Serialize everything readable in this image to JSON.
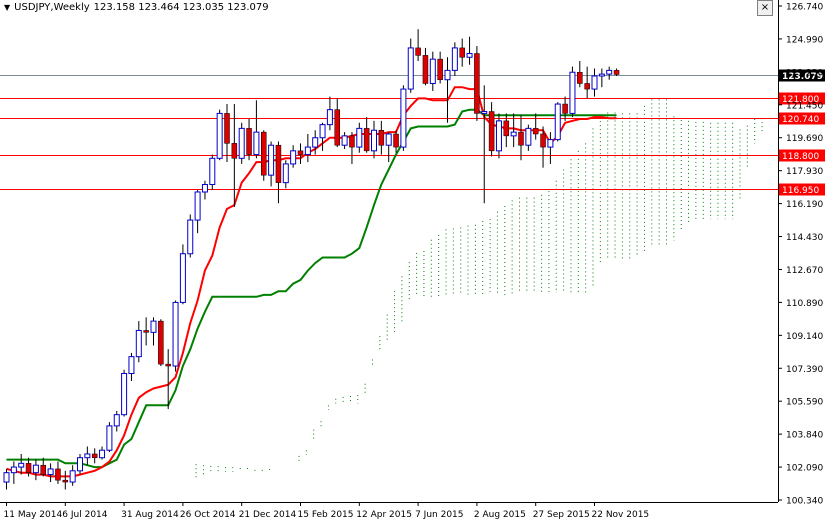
{
  "header": {
    "symbol": "USDJPY,Weekly",
    "ohlc": "123.158 123.464 123.035 123.079",
    "close_label": "×"
  },
  "chart_data": {
    "type": "candlestick",
    "instrument": "USDJPY",
    "timeframe": "Weekly",
    "ylim": [
      100.34,
      126.74
    ],
    "price_axis_ticks": [
      "126.740",
      "124.990",
      "123.230",
      "121.450",
      "119.690",
      "117.930",
      "116.190",
      "114.430",
      "112.670",
      "110.890",
      "109.140",
      "107.390",
      "105.590",
      "103.840",
      "102.090",
      "100.340"
    ],
    "date_axis_ticks": [
      "11 May 2014",
      "6 Jul 2014",
      "31 Aug 2014",
      "26 Oct 2014",
      "21 Dec 2014",
      "15 Feb 2015",
      "12 Apr 2015",
      "7 Jun 2015",
      "2 Aug 2015",
      "27 Sep 2015",
      "22 Nov 2015"
    ],
    "date_tick_index": [
      0,
      8,
      16,
      24,
      32,
      40,
      48,
      56,
      64,
      72,
      80
    ],
    "current_price": {
      "value": 123.079,
      "label": "123.079"
    },
    "horizontal_levels": [
      {
        "value": 121.8,
        "label": "121.800"
      },
      {
        "value": 120.74,
        "label": "120.740"
      },
      {
        "value": 118.8,
        "label": "118.800"
      },
      {
        "value": 116.95,
        "label": "116.950"
      }
    ],
    "candles": [
      [
        101.3,
        102.0,
        100.9,
        101.8
      ],
      [
        101.8,
        102.4,
        101.2,
        102.1
      ],
      [
        102.1,
        102.8,
        101.7,
        102.3
      ],
      [
        102.3,
        102.6,
        101.6,
        101.8
      ],
      [
        101.8,
        102.5,
        101.4,
        102.2
      ],
      [
        102.2,
        102.6,
        101.6,
        101.7
      ],
      [
        101.7,
        102.3,
        101.3,
        102.0
      ],
      [
        102.0,
        102.4,
        101.2,
        101.4
      ],
      [
        101.4,
        101.9,
        100.9,
        101.3
      ],
      [
        101.3,
        102.2,
        101.1,
        101.9
      ],
      [
        101.9,
        102.8,
        101.7,
        102.6
      ],
      [
        102.6,
        103.2,
        102.2,
        102.8
      ],
      [
        102.8,
        103.1,
        102.3,
        102.6
      ],
      [
        102.6,
        103.2,
        102.5,
        103.0
      ],
      [
        103.0,
        104.5,
        102.9,
        104.3
      ],
      [
        104.3,
        105.1,
        104.0,
        104.9
      ],
      [
        104.9,
        107.3,
        104.8,
        107.1
      ],
      [
        107.1,
        108.2,
        106.7,
        108.0
      ],
      [
        108.0,
        109.9,
        107.7,
        109.4
      ],
      [
        109.4,
        110.1,
        108.6,
        109.3
      ],
      [
        109.3,
        110.1,
        108.6,
        109.9
      ],
      [
        109.9,
        110.0,
        107.5,
        107.6
      ],
      [
        107.6,
        108.4,
        105.2,
        107.5
      ],
      [
        107.5,
        111.0,
        107.2,
        110.9
      ],
      [
        110.9,
        114.0,
        110.8,
        113.5
      ],
      [
        113.5,
        115.6,
        113.3,
        115.3
      ],
      [
        115.3,
        116.9,
        114.6,
        116.8
      ],
      [
        116.8,
        117.4,
        116.4,
        117.2
      ],
      [
        117.2,
        118.8,
        116.9,
        118.6
      ],
      [
        118.6,
        121.2,
        118.5,
        121.0
      ],
      [
        121.0,
        121.5,
        118.4,
        119.4
      ],
      [
        119.4,
        121.5,
        116.0,
        118.6
      ],
      [
        118.6,
        120.5,
        118.3,
        120.2
      ],
      [
        120.2,
        120.7,
        118.5,
        118.8
      ],
      [
        118.8,
        121.7,
        118.6,
        120.0
      ],
      [
        120.0,
        120.1,
        117.4,
        117.7
      ],
      [
        117.7,
        119.5,
        117.1,
        119.3
      ],
      [
        119.3,
        119.5,
        116.2,
        117.3
      ],
      [
        117.3,
        118.5,
        117.0,
        118.3
      ],
      [
        118.3,
        119.3,
        118.1,
        119.0
      ],
      [
        119.0,
        119.4,
        118.3,
        118.8
      ],
      [
        118.8,
        119.9,
        118.4,
        119.2
      ],
      [
        119.2,
        120.1,
        118.8,
        119.7
      ],
      [
        119.7,
        120.5,
        119.0,
        120.4
      ],
      [
        120.4,
        121.9,
        120.1,
        121.2
      ],
      [
        121.2,
        121.8,
        119.2,
        119.3
      ],
      [
        119.3,
        120.0,
        119.1,
        119.8
      ],
      [
        119.8,
        120.0,
        118.3,
        119.2
      ],
      [
        119.2,
        120.5,
        118.9,
        120.2
      ],
      [
        120.2,
        120.8,
        118.9,
        119.0
      ],
      [
        119.0,
        120.6,
        118.6,
        120.1
      ],
      [
        120.1,
        120.6,
        118.8,
        119.3
      ],
      [
        119.3,
        120.0,
        118.4,
        119.9
      ],
      [
        119.9,
        120.1,
        118.9,
        119.2
      ],
      [
        119.2,
        122.5,
        119.0,
        122.3
      ],
      [
        122.3,
        125.0,
        122.1,
        124.5
      ],
      [
        124.5,
        125.5,
        123.8,
        124.1
      ],
      [
        124.1,
        124.5,
        122.5,
        122.6
      ],
      [
        122.6,
        124.3,
        122.2,
        123.9
      ],
      [
        123.9,
        124.3,
        122.6,
        122.8
      ],
      [
        122.8,
        124.0,
        120.5,
        123.3
      ],
      [
        123.3,
        124.8,
        123.0,
        124.5
      ],
      [
        124.5,
        125.0,
        123.5,
        124.0
      ],
      [
        124.0,
        125.1,
        123.6,
        124.2
      ],
      [
        124.2,
        124.6,
        120.6,
        121.0
      ],
      [
        121.0,
        122.5,
        116.2,
        121.1
      ],
      [
        121.1,
        121.6,
        118.7,
        119.0
      ],
      [
        119.0,
        121.0,
        118.6,
        120.6
      ],
      [
        120.6,
        121.0,
        119.2,
        119.8
      ],
      [
        119.8,
        121.0,
        119.2,
        120.0
      ],
      [
        120.0,
        120.9,
        118.5,
        119.3
      ],
      [
        119.3,
        120.4,
        119.0,
        120.2
      ],
      [
        120.2,
        121.0,
        119.6,
        119.9
      ],
      [
        119.9,
        120.3,
        118.1,
        119.2
      ],
      [
        119.2,
        120.0,
        118.3,
        119.6
      ],
      [
        119.6,
        121.6,
        119.5,
        121.5
      ],
      [
        121.5,
        121.9,
        120.6,
        121.0
      ],
      [
        121.0,
        123.5,
        120.8,
        123.2
      ],
      [
        123.2,
        123.8,
        122.4,
        122.6
      ],
      [
        122.6,
        123.5,
        121.8,
        122.3
      ],
      [
        122.3,
        123.4,
        121.9,
        123.0
      ],
      [
        123.0,
        123.4,
        122.4,
        123.1
      ],
      [
        123.1,
        123.5,
        122.8,
        123.3
      ],
      [
        123.3,
        123.4,
        123.0,
        123.079
      ]
    ],
    "tenkan_sen": {
      "color": "#ff0000",
      "values": [
        102.0,
        101.9,
        101.8,
        101.8,
        101.7,
        101.7,
        101.6,
        101.6,
        101.6,
        101.6,
        101.7,
        101.8,
        101.9,
        102.1,
        102.4,
        103.0,
        103.8,
        104.9,
        105.8,
        106.1,
        106.3,
        106.4,
        106.5,
        106.9,
        108.2,
        109.8,
        111.0,
        112.6,
        113.4,
        114.9,
        115.9,
        116.1,
        117.3,
        117.8,
        118.4,
        118.4,
        118.5,
        118.5,
        118.6,
        118.6,
        118.6,
        118.9,
        119.1,
        119.4,
        119.7,
        119.7,
        119.7,
        119.8,
        119.9,
        119.9,
        119.9,
        119.9,
        120.0,
        120.0,
        120.9,
        121.4,
        121.8,
        121.8,
        121.7,
        121.7,
        121.7,
        122.4,
        122.4,
        122.3,
        122.3,
        120.8,
        120.4,
        120.3,
        120.2,
        120.2,
        120.1,
        120.1,
        120.1,
        120.1,
        119.4,
        119.8,
        120.5,
        120.6,
        120.7,
        120.7,
        120.8,
        120.8,
        120.74,
        120.74
      ]
    },
    "kijun_sen": {
      "color": "#008000",
      "values": [
        102.5,
        102.5,
        102.5,
        102.5,
        102.5,
        102.5,
        102.5,
        102.5,
        102.3,
        102.3,
        102.3,
        102.2,
        102.1,
        102.1,
        102.3,
        102.5,
        103.3,
        103.6,
        104.5,
        105.4,
        105.4,
        105.4,
        105.4,
        106.2,
        107.5,
        108.4,
        109.5,
        110.4,
        111.2,
        111.2,
        111.2,
        111.2,
        111.2,
        111.2,
        111.2,
        111.3,
        111.3,
        111.5,
        111.5,
        111.9,
        112.1,
        112.6,
        113.0,
        113.3,
        113.3,
        113.3,
        113.3,
        113.5,
        113.8,
        114.9,
        116.1,
        117.2,
        118.0,
        118.8,
        119.5,
        120.2,
        120.3,
        120.3,
        120.3,
        120.3,
        120.3,
        120.4,
        121.1,
        121.2,
        121.2,
        120.9,
        120.9,
        120.9,
        120.9,
        120.9,
        120.9,
        120.9,
        120.9,
        120.9,
        120.9,
        120.9,
        120.9,
        120.9,
        120.9,
        120.9,
        120.9,
        120.9,
        120.9,
        120.9
      ]
    },
    "cloud_dotted_region": {
      "color": "#008000",
      "note": ""
    }
  }
}
